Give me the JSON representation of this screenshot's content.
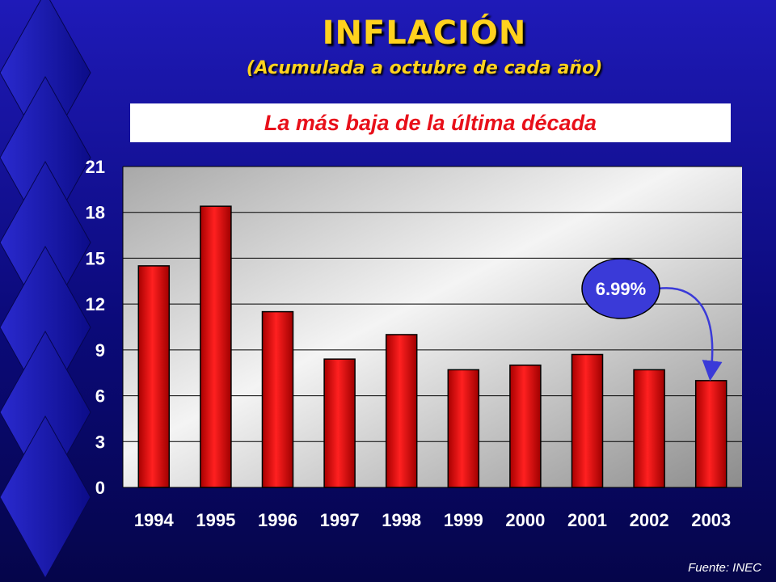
{
  "header": {
    "title": "INFLACIÓN",
    "subtitle": "(Acumulada a octubre de cada año)",
    "banner": "La más baja de la última década"
  },
  "source": "Fuente: INEC",
  "colors": {
    "bar": "#ff1010",
    "title": "#ffd21e",
    "banner_text": "#e8101a",
    "callout": "#3a3ad8"
  },
  "chart_data": {
    "type": "bar",
    "categories": [
      "1994",
      "1995",
      "1996",
      "1997",
      "1998",
      "1999",
      "2000",
      "2001",
      "2002",
      "2003"
    ],
    "values": [
      14.5,
      18.4,
      11.5,
      8.4,
      10.0,
      7.7,
      8.0,
      8.7,
      7.7,
      6.99
    ],
    "ylim": [
      0,
      21
    ],
    "yticks": [
      "0",
      "3",
      "6",
      "9",
      "12",
      "15",
      "18",
      "21"
    ],
    "grid": true,
    "callout": {
      "label": "6.99%",
      "category": "2003"
    }
  }
}
